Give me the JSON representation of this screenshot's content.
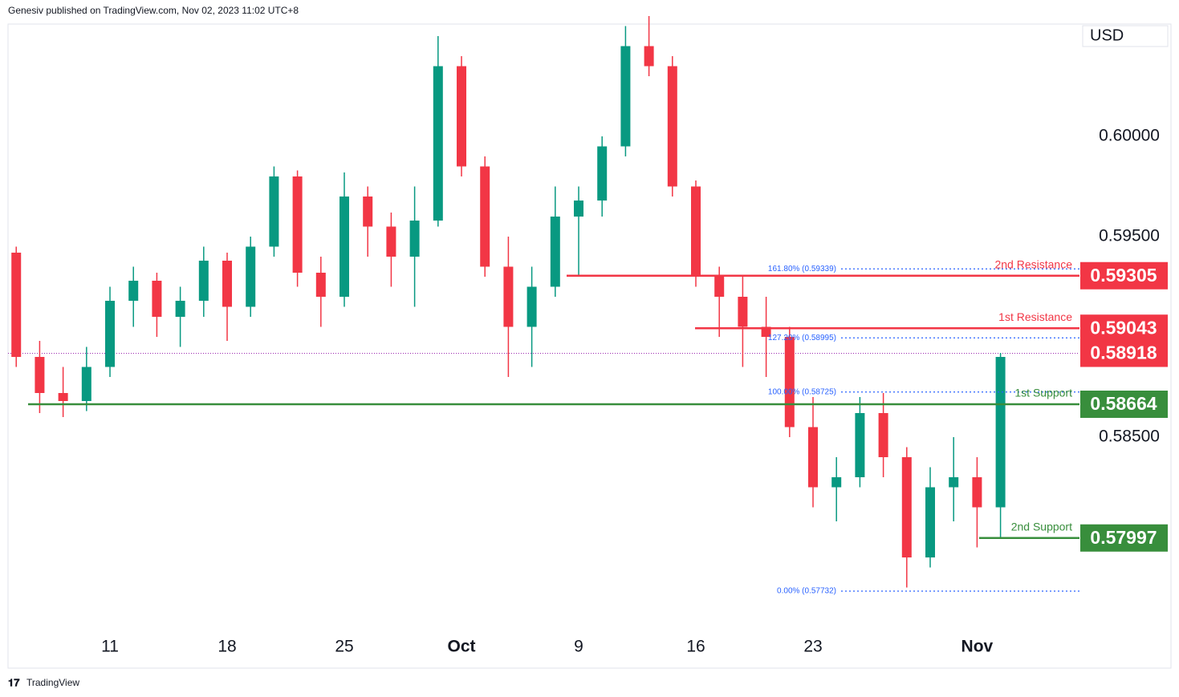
{
  "header": "Genesiv published on TradingView.com, Nov 02, 2023 11:02 UTC+8",
  "footer": "TradingView",
  "chart_data": {
    "type": "candlestick",
    "currency": "USD",
    "up_color": "#089981",
    "down_color": "#f23645",
    "xlim": [
      -4.35,
      41.37
    ],
    "ylim": [
      0.5752,
      0.6056
    ],
    "xticks": [
      {
        "value": 0,
        "label": "11"
      },
      {
        "value": 5,
        "label": "18"
      },
      {
        "value": 10,
        "label": "25"
      },
      {
        "value": 15,
        "label": "Oct"
      },
      {
        "value": 20,
        "label": "9"
      },
      {
        "value": 25,
        "label": "16"
      },
      {
        "value": 30,
        "label": "23"
      },
      {
        "value": 37,
        "label": "Nov"
      }
    ],
    "yticks": [
      {
        "value": 0.6,
        "label": "0.60000"
      },
      {
        "value": 0.595,
        "label": "0.59500"
      },
      {
        "value": 0.585,
        "label": "0.58500"
      }
    ],
    "x": [
      -4,
      -3,
      -2,
      -1,
      0,
      1,
      2,
      3,
      4,
      5,
      6,
      7,
      8,
      9,
      10,
      11,
      12,
      13,
      14,
      15,
      16,
      17,
      18,
      19,
      20,
      21,
      22,
      23,
      24,
      25,
      26,
      27,
      28,
      29,
      30,
      31,
      32,
      33,
      34,
      35,
      36,
      37,
      38
    ],
    "open": [
      0.5942,
      0.589,
      0.5872,
      0.5868,
      0.5885,
      0.5918,
      0.5928,
      0.591,
      0.5918,
      0.5938,
      0.5915,
      0.5945,
      0.598,
      0.5932,
      0.592,
      0.597,
      0.5955,
      0.594,
      0.5958,
      0.6035,
      0.5985,
      0.5935,
      0.5905,
      0.5925,
      0.596,
      0.5968,
      0.5995,
      0.6045,
      0.6035,
      0.5975,
      0.593,
      0.592,
      0.5905,
      0.59,
      0.5855,
      0.5825,
      0.583,
      0.5862,
      0.584,
      0.579,
      0.5825,
      0.583,
      0.5815
    ],
    "high": [
      0.5945,
      0.5898,
      0.5885,
      0.5895,
      0.5925,
      0.5935,
      0.5932,
      0.5925,
      0.5945,
      0.5942,
      0.595,
      0.5985,
      0.5983,
      0.594,
      0.5982,
      0.5975,
      0.5962,
      0.5975,
      0.605,
      0.604,
      0.599,
      0.595,
      0.5935,
      0.5975,
      0.5975,
      0.6,
      0.6055,
      0.606,
      0.604,
      0.5978,
      0.5935,
      0.593,
      0.592,
      0.5905,
      0.587,
      0.584,
      0.587,
      0.5872,
      0.5845,
      0.5835,
      0.585,
      0.584,
      0.5892
    ],
    "low": [
      0.5885,
      0.5862,
      0.586,
      0.5863,
      0.588,
      0.5905,
      0.59,
      0.5895,
      0.591,
      0.5898,
      0.591,
      0.594,
      0.5925,
      0.5905,
      0.5915,
      0.594,
      0.5925,
      0.5915,
      0.5955,
      0.598,
      0.593,
      0.588,
      0.5885,
      0.592,
      0.593,
      0.596,
      0.599,
      0.603,
      0.597,
      0.5925,
      0.59,
      0.5885,
      0.588,
      0.585,
      0.5815,
      0.5808,
      0.5825,
      0.583,
      0.5775,
      0.5785,
      0.5808,
      0.5795,
      0.58
    ],
    "close": [
      0.589,
      0.5872,
      0.5868,
      0.5885,
      0.5918,
      0.5928,
      0.591,
      0.5918,
      0.5938,
      0.5915,
      0.5945,
      0.598,
      0.5932,
      0.592,
      0.597,
      0.5955,
      0.594,
      0.5958,
      0.6035,
      0.5985,
      0.5935,
      0.5905,
      0.5925,
      0.596,
      0.5968,
      0.5995,
      0.6045,
      0.6035,
      0.5975,
      0.593,
      0.592,
      0.5905,
      0.59,
      0.5855,
      0.5825,
      0.583,
      0.5862,
      0.584,
      0.579,
      0.5825,
      0.583,
      0.5815,
      0.589
    ],
    "last_price": {
      "value": 0.58918,
      "color": "#f23645"
    },
    "levels": [
      {
        "label": "2nd Resistance",
        "value": 0.59305,
        "color": "#f23645"
      },
      {
        "label": "1st Resistance",
        "value": 0.59043,
        "color": "#f23645"
      },
      {
        "label": "1st Support",
        "value": 0.58664,
        "color": "#388e3c"
      },
      {
        "label": "2nd Support",
        "value": 0.57997,
        "color": "#388e3c"
      }
    ],
    "fib_color": "#2962ff",
    "fib_levels": [
      {
        "label": "161.80% (0.59339)",
        "value": 0.59339
      },
      {
        "label": "127.20% (0.58995)",
        "value": 0.58995
      },
      {
        "label": "100.00% (0.58725)",
        "value": 0.58725
      },
      {
        "label": "0.00% (0.57732)",
        "value": 0.57732
      }
    ]
  }
}
